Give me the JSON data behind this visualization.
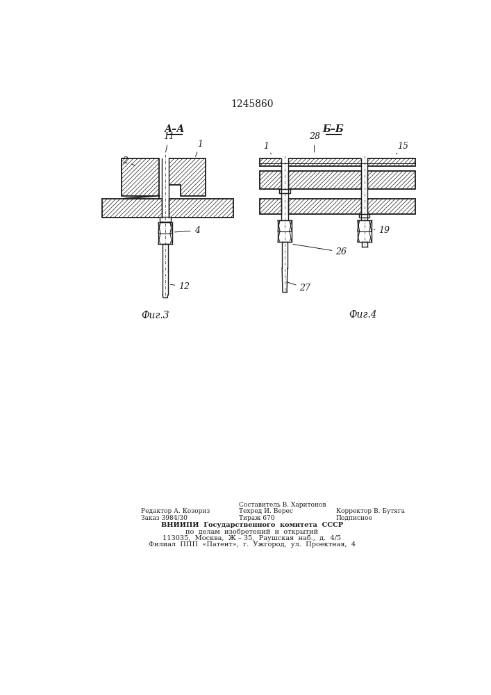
{
  "title": "1245860",
  "fig3_label": "Фиг.3",
  "fig4_label": "Фиг.4",
  "section_aa": "А–А",
  "section_bb": "Б–Б",
  "bg_color": "#ffffff",
  "line_color": "#1a1a1a",
  "footer_col1_line1": "Редактор А. Козориз",
  "footer_col1_line2": "Заказ 3984/30",
  "footer_col2_line0": "Составитель В. Харитонов",
  "footer_col2_line1": "Техред И. Верес",
  "footer_col2_line2": "Тираж 670",
  "footer_col3_line1": "Корректор В. Бутяга",
  "footer_col3_line2": "Подписное",
  "footer_vniip1": "ВНИИПИ  Государственного  комитета  СССР",
  "footer_vniip2": "по  делам  изобретений  и  открытий",
  "footer_vniip3": "113035,  Москва,  Ж – 35,  Раушская  наб.,  д.  4/5",
  "footer_vniip4": "Филиал  ППП  «Патент»,  г.  Ужгород,  ул.  Проектная,  4"
}
